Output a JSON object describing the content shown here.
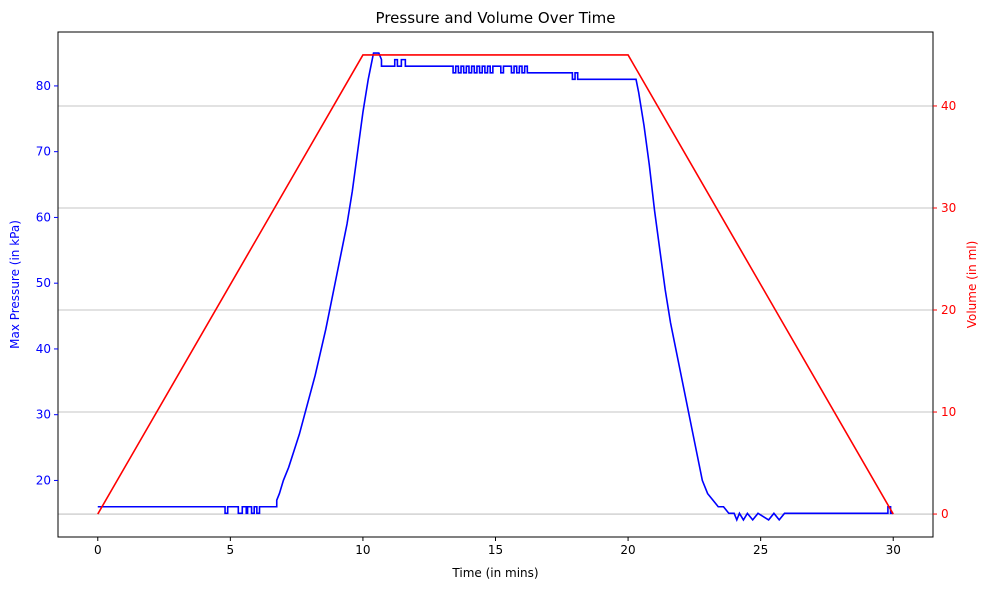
{
  "chart_data": {
    "type": "line",
    "title": "Pressure and Volume Over Time",
    "xlabel": "Time (in mins)",
    "y1label": "Max Pressure (in kPa)",
    "y2label": "Volume (in ml)",
    "xlim": [
      -1.5,
      31.5
    ],
    "y1lim": [
      11.4,
      88.2
    ],
    "y2lim": [
      -2.25,
      47.25
    ],
    "x_ticks": [
      0,
      5,
      10,
      15,
      20,
      25,
      30
    ],
    "y1_ticks": [
      20,
      30,
      40,
      50,
      60,
      70,
      80
    ],
    "y2_ticks": [
      0,
      10,
      20,
      30,
      40
    ],
    "grid": "horizontal lines at right-axis ticks",
    "colors": {
      "pressure": "#0000ff",
      "volume": "#ff0000",
      "grid": "#b0b0b0"
    },
    "series": [
      {
        "axis": "left",
        "color": "#0000ff",
        "x": [
          0,
          4.8,
          4.8,
          4.9,
          4.9,
          5.3,
          5.3,
          5.45,
          5.45,
          5.6,
          5.6,
          5.65,
          5.65,
          5.8,
          5.8,
          5.9,
          5.9,
          6.0,
          6.0,
          6.1,
          6.1,
          6.75,
          6.75,
          6.85,
          7.0,
          7.2,
          7.4,
          7.6,
          7.8,
          8.0,
          8.2,
          8.4,
          8.6,
          8.8,
          9.0,
          9.2,
          9.4,
          9.6,
          9.8,
          10.0,
          10.2,
          10.3,
          10.4,
          10.6,
          10.7,
          10.7,
          11.2,
          11.2,
          11.3,
          11.3,
          11.45,
          11.45,
          11.6,
          11.6,
          13.4,
          13.4,
          13.5,
          13.5,
          13.6,
          13.6,
          13.7,
          13.7,
          13.8,
          13.8,
          13.9,
          13.9,
          14.0,
          14.0,
          14.1,
          14.1,
          14.2,
          14.2,
          14.3,
          14.3,
          14.4,
          14.4,
          14.5,
          14.5,
          14.6,
          14.6,
          14.7,
          14.7,
          14.8,
          14.8,
          14.9,
          14.9,
          15.2,
          15.2,
          15.3,
          15.3,
          15.6,
          15.6,
          15.7,
          15.7,
          15.8,
          15.8,
          15.9,
          15.9,
          16.0,
          16.0,
          16.1,
          16.1,
          16.2,
          16.2,
          16.3,
          16.3,
          17.9,
          17.9,
          18.0,
          18.0,
          18.1,
          18.1,
          18.2,
          18.2,
          20.3,
          20.4,
          20.6,
          20.8,
          21.0,
          21.2,
          21.4,
          21.6,
          21.8,
          22.0,
          22.2,
          22.4,
          22.6,
          22.8,
          23.0,
          23.2,
          23.4,
          23.6,
          23.8,
          24.0,
          24.1,
          24.1,
          24.2,
          24.2,
          24.35,
          24.35,
          24.5,
          24.5,
          24.7,
          24.7,
          24.9,
          24.9,
          25.3,
          25.3,
          25.5,
          25.5,
          25.7,
          25.7,
          25.9,
          25.9,
          29.8,
          29.8,
          29.9,
          29.9,
          30.0
        ],
        "y": [
          16,
          16,
          15,
          15,
          16,
          16,
          15,
          15,
          16,
          16,
          15,
          15,
          16,
          16,
          15,
          15,
          16,
          16,
          15,
          15,
          16,
          16,
          17,
          18,
          20,
          22,
          24.5,
          27,
          30,
          33,
          36,
          39.5,
          43,
          47,
          51,
          55,
          59,
          64,
          70,
          76,
          81,
          83,
          85,
          85,
          84,
          83,
          83,
          84,
          84,
          83,
          83,
          84,
          84,
          83,
          83,
          82,
          82,
          83,
          83,
          82,
          82,
          83,
          83,
          82,
          82,
          83,
          83,
          82,
          82,
          83,
          83,
          82,
          82,
          83,
          83,
          82,
          82,
          83,
          83,
          82,
          82,
          83,
          83,
          82,
          82,
          83,
          83,
          82,
          82,
          83,
          83,
          82,
          82,
          83,
          83,
          82,
          82,
          83,
          83,
          82,
          82,
          83,
          83,
          82,
          82,
          82,
          82,
          81,
          81,
          82,
          82,
          81,
          81,
          81,
          81,
          79,
          74,
          68,
          61,
          55,
          49,
          44,
          40,
          36,
          32,
          28,
          24,
          20,
          18,
          17,
          16,
          16,
          15,
          15,
          14,
          14,
          15,
          15,
          14,
          14,
          15,
          15,
          14,
          14,
          15,
          15,
          14,
          14,
          15,
          15,
          14,
          14,
          15,
          15,
          15,
          16,
          16,
          15,
          15
        ]
      },
      {
        "axis": "right",
        "color": "#ff0000",
        "x": [
          0,
          10,
          20,
          30
        ],
        "y": [
          0,
          45,
          45,
          0
        ]
      }
    ]
  }
}
